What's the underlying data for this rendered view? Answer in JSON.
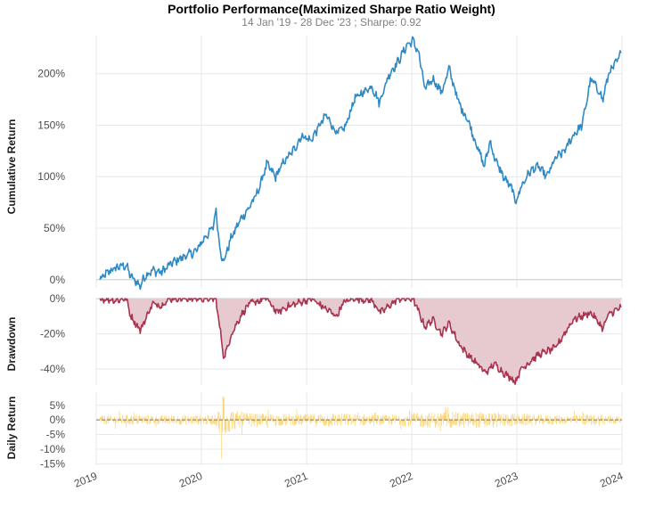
{
  "colors": {
    "cumulative": "#2f8ac4",
    "drawdown": "#a8354f",
    "drawdown_fill": "#e7c9d0",
    "daily": "#fcd77a",
    "zero_line": "#777777"
  },
  "chart_data": {
    "type": "line",
    "title": "Portfolio Performance(Maximized Sharpe Ratio Weight)",
    "subtitle": "14 Jan '19 - 28 Dec '23 ;  Sharpe: 0.92",
    "x_ticks": [
      "2019",
      "2020",
      "2021",
      "2022",
      "2023",
      "2024"
    ],
    "panels": [
      {
        "name": "Cumulative Return",
        "ylabel": "Cumulative Return",
        "ytick_labels": [
          "0%",
          "50%",
          "100%",
          "150%",
          "200%"
        ],
        "ytick_values": [
          0,
          50,
          100,
          150,
          200
        ],
        "ylim": [
          -8,
          237
        ],
        "series": [
          {
            "x": [
              "2019-01-14",
              "2019-02-15",
              "2019-03-15",
              "2019-04-15",
              "2019-05-01",
              "2019-06-03",
              "2019-06-20",
              "2019-07-15",
              "2019-08-15",
              "2019-09-15",
              "2019-10-15",
              "2019-11-15",
              "2019-12-15",
              "2020-01-10",
              "2020-02-10",
              "2020-02-20",
              "2020-03-10",
              "2020-03-20",
              "2020-04-10",
              "2020-05-15",
              "2020-06-15",
              "2020-07-15",
              "2020-08-15",
              "2020-09-15",
              "2020-10-15",
              "2020-11-15",
              "2020-12-15",
              "2021-01-15",
              "2021-02-15",
              "2021-03-10",
              "2021-04-15",
              "2021-05-15",
              "2021-06-15",
              "2021-07-15",
              "2021-08-15",
              "2021-09-10",
              "2021-10-15",
              "2021-11-15",
              "2021-12-15",
              "2022-01-05",
              "2022-01-25",
              "2022-02-15",
              "2022-03-15",
              "2022-04-15",
              "2022-05-10",
              "2022-06-15",
              "2022-07-15",
              "2022-08-15",
              "2022-09-10",
              "2022-09-30",
              "2022-10-15",
              "2022-11-15",
              "2022-12-15",
              "2022-12-28",
              "2023-01-15",
              "2023-02-15",
              "2023-03-15",
              "2023-04-15",
              "2023-05-15",
              "2023-06-15",
              "2023-07-15",
              "2023-08-15",
              "2023-09-15",
              "2023-10-15",
              "2023-10-27",
              "2023-11-15",
              "2023-12-15",
              "2023-12-28"
            ],
            "y": [
              0,
              8,
              12,
              14,
              3,
              -6,
              4,
              9,
              7,
              15,
              20,
              24,
              28,
              40,
              50,
              68,
              22,
              18,
              38,
              58,
              70,
              85,
              112,
              100,
              115,
              125,
              140,
              135,
              150,
              160,
              142,
              148,
              175,
              182,
              188,
              172,
              200,
              212,
              228,
              232,
              220,
              185,
              195,
              182,
              205,
              170,
              155,
              130,
              110,
              135,
              118,
              100,
              88,
              75,
              90,
              105,
              110,
              100,
              118,
              125,
              140,
              150,
              195,
              182,
              175,
              200,
              212,
              220
            ]
          }
        ]
      },
      {
        "name": "Drawdown",
        "ylabel": "Drawdown",
        "ytick_labels": [
          "0%",
          "-20%",
          "-40%"
        ],
        "ytick_values": [
          0,
          -20,
          -40
        ],
        "ylim": [
          -49,
          0
        ],
        "series": [
          {
            "x": [
              "2019-01-14",
              "2019-03-15",
              "2019-04-15",
              "2019-05-01",
              "2019-06-03",
              "2019-07-15",
              "2019-08-15",
              "2019-09-10",
              "2019-12-15",
              "2020-02-20",
              "2020-03-20",
              "2020-04-15",
              "2020-05-20",
              "2020-06-15",
              "2020-08-15",
              "2020-09-20",
              "2020-10-20",
              "2021-01-15",
              "2021-04-15",
              "2021-05-10",
              "2021-06-15",
              "2021-08-15",
              "2021-09-15",
              "2021-11-15",
              "2022-01-05",
              "2022-02-15",
              "2022-03-15",
              "2022-04-15",
              "2022-05-10",
              "2022-06-15",
              "2022-07-15",
              "2022-08-15",
              "2022-09-15",
              "2022-10-15",
              "2022-11-15",
              "2022-12-28",
              "2023-01-15",
              "2023-03-15",
              "2023-05-15",
              "2023-07-15",
              "2023-09-15",
              "2023-10-27",
              "2023-11-15",
              "2023-12-28"
            ],
            "y": [
              0,
              -1,
              0,
              -10,
              -18,
              -3,
              -4,
              0,
              0,
              0,
              -34,
              -20,
              -9,
              -3,
              0,
              -8,
              -5,
              0,
              -10,
              -2,
              0,
              -1,
              -8,
              0,
              0,
              -16,
              -12,
              -20,
              -14,
              -26,
              -32,
              -37,
              -42,
              -37,
              -42,
              -47,
              -40,
              -32,
              -28,
              -12,
              -8,
              -17,
              -9,
              -5
            ]
          }
        ]
      },
      {
        "name": "Daily Return",
        "ylabel": "Daily Return",
        "ytick_labels": [
          "5%",
          "0%",
          "-5%",
          "-10%",
          "-15%"
        ],
        "ytick_values": [
          5,
          0,
          -5,
          -10,
          -15
        ],
        "ylim": [
          -15.5,
          9.5
        ]
      }
    ]
  }
}
